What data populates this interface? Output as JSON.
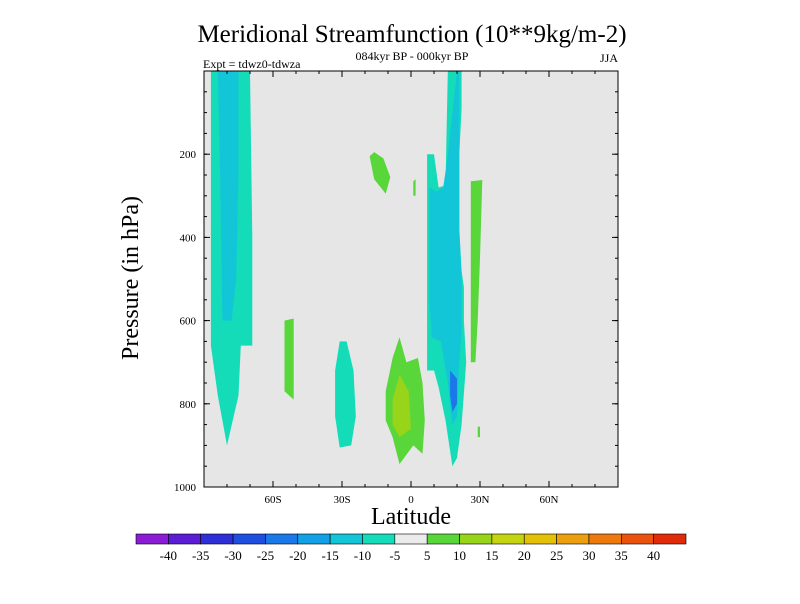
{
  "chart_data": {
    "type": "heatmap",
    "title": "Meridional Streamfunction (10**9kg/m-2)",
    "subtitle": "084kyr BP - 000kyr BP",
    "left_label": "Expt = tdwz0-tdwza",
    "right_label": "JJA",
    "xlabel": "Latitude",
    "ylabel": "Pressure (in hPa)",
    "xlim": [
      -90,
      90
    ],
    "ylim": [
      1000,
      0
    ],
    "x_ticks": [
      {
        "value": -60,
        "label": "60S"
      },
      {
        "value": -30,
        "label": "30S"
      },
      {
        "value": 0,
        "label": "0"
      },
      {
        "value": 30,
        "label": "30N"
      },
      {
        "value": 60,
        "label": "60N"
      }
    ],
    "y_ticks": [
      {
        "value": 200,
        "label": "200"
      },
      {
        "value": 400,
        "label": "400"
      },
      {
        "value": 600,
        "label": "600"
      },
      {
        "value": 800,
        "label": "800"
      },
      {
        "value": 1000,
        "label": "1000"
      }
    ],
    "background_color": "#e6e6e6",
    "colorbar": {
      "levels": [
        "-40",
        "-35",
        "-30",
        "-25",
        "-20",
        "-15",
        "-10",
        "-5",
        "5",
        "10",
        "15",
        "20",
        "25",
        "30",
        "35",
        "40"
      ],
      "colors": [
        "#8a1cd6",
        "#5b1cd6",
        "#2f2fd8",
        "#1f4fe0",
        "#1a78e8",
        "#12a0e6",
        "#12c6d8",
        "#14dcb8",
        "#ebebeb",
        "#58d63a",
        "#98d41a",
        "#c4d410",
        "#e4c008",
        "#eca010",
        "#ee7a0e",
        "#ea520e",
        "#e02a0a"
      ]
    },
    "regions": [
      {
        "name": "sh-high-lat-negative",
        "value": -10,
        "color": "#14dcb8",
        "points": [
          [
            -87,
            0
          ],
          [
            -70,
            0
          ],
          [
            -69,
            400
          ],
          [
            -69,
            660
          ],
          [
            -74,
            660
          ],
          [
            -75,
            780
          ],
          [
            -80,
            900
          ],
          [
            -84,
            780
          ],
          [
            -87,
            660
          ]
        ]
      },
      {
        "name": "sh-high-lat-core",
        "value": -15,
        "color": "#12c6d8",
        "points": [
          [
            -84,
            0
          ],
          [
            -75,
            0
          ],
          [
            -75,
            250
          ],
          [
            -76,
            500
          ],
          [
            -78,
            600
          ],
          [
            -82,
            600
          ],
          [
            -83,
            250
          ]
        ]
      },
      {
        "name": "sh-high-lat-narrow",
        "value": -15,
        "color": "#12c6d8",
        "points": [
          [
            -81,
            0
          ],
          [
            -78,
            0
          ],
          [
            -78,
            120
          ],
          [
            -79,
            160
          ],
          [
            -81,
            120
          ]
        ]
      },
      {
        "name": "south-mid-lat-positive",
        "value": 5,
        "color": "#58d63a",
        "points": [
          [
            -55,
            600
          ],
          [
            -51,
            595
          ],
          [
            -51,
            790
          ],
          [
            -55,
            770
          ]
        ]
      },
      {
        "name": "south-subtropic-negative",
        "value": -10,
        "color": "#14dcb8",
        "points": [
          [
            -33,
            720
          ],
          [
            -31,
            650
          ],
          [
            -28,
            650
          ],
          [
            -25,
            720
          ],
          [
            -24,
            830
          ],
          [
            -26,
            900
          ],
          [
            -31,
            905
          ],
          [
            -33,
            830
          ]
        ]
      },
      {
        "name": "southern-tropic-upper-positive",
        "value": 5,
        "color": "#58d63a",
        "points": [
          [
            -18,
            205
          ],
          [
            -16,
            195
          ],
          [
            -12,
            210
          ],
          [
            -9,
            255
          ],
          [
            -11,
            295
          ],
          [
            -16,
            260
          ]
        ]
      },
      {
        "name": "equator-upper-positive",
        "value": 5,
        "color": "#58d63a",
        "points": [
          [
            1,
            265
          ],
          [
            2,
            260
          ],
          [
            2,
            300
          ],
          [
            1,
            300
          ]
        ]
      },
      {
        "name": "southern-tropic-lower-positive",
        "value": 5,
        "color": "#58d63a",
        "points": [
          [
            -11,
            770
          ],
          [
            -8,
            690
          ],
          [
            -5,
            640
          ],
          [
            -2,
            700
          ],
          [
            3,
            690
          ],
          [
            5,
            750
          ],
          [
            6,
            840
          ],
          [
            5,
            920
          ],
          [
            1,
            900
          ],
          [
            -5,
            945
          ],
          [
            -8,
            880
          ],
          [
            -11,
            840
          ]
        ]
      },
      {
        "name": "southern-tropic-lower-core",
        "value": 10,
        "color": "#98d41a",
        "points": [
          [
            -8,
            790
          ],
          [
            -5,
            730
          ],
          [
            -1,
            770
          ],
          [
            0,
            860
          ],
          [
            -5,
            880
          ],
          [
            -8,
            850
          ]
        ]
      },
      {
        "name": "northern-tropic-negative",
        "value": -10,
        "color": "#14dcb8",
        "points": [
          [
            7,
            200
          ],
          [
            10,
            200
          ],
          [
            12,
            280
          ],
          [
            15,
            275
          ],
          [
            16,
            0
          ],
          [
            22,
            0
          ],
          [
            22,
            90
          ],
          [
            21,
            200
          ],
          [
            21,
            380
          ],
          [
            22,
            480
          ],
          [
            23,
            520
          ],
          [
            23,
            600
          ],
          [
            24,
            700
          ],
          [
            22,
            850
          ],
          [
            20,
            930
          ],
          [
            18,
            950
          ],
          [
            15,
            840
          ],
          [
            12,
            760
          ],
          [
            10,
            720
          ],
          [
            7,
            720
          ]
        ]
      },
      {
        "name": "northern-tropic-core",
        "value": -15,
        "color": "#12c6d8",
        "points": [
          [
            8,
            280
          ],
          [
            11,
            290
          ],
          [
            14,
            280
          ],
          [
            16,
            205
          ],
          [
            20,
            0
          ],
          [
            21,
            0
          ],
          [
            21,
            380
          ],
          [
            22,
            500
          ],
          [
            22,
            620
          ],
          [
            21,
            700
          ],
          [
            20,
            830
          ],
          [
            18,
            850
          ],
          [
            16,
            750
          ],
          [
            13,
            650
          ],
          [
            9,
            640
          ],
          [
            8,
            550
          ]
        ]
      },
      {
        "name": "northern-tropic-deep-core",
        "value": -20,
        "color": "#1a78e8",
        "points": [
          [
            17,
            720
          ],
          [
            20,
            740
          ],
          [
            20,
            800
          ],
          [
            18,
            820
          ],
          [
            17,
            780
          ]
        ]
      },
      {
        "name": "north-subtropic-positive",
        "value": 5,
        "color": "#58d63a",
        "points": [
          [
            26,
            265
          ],
          [
            31,
            262
          ],
          [
            30,
            450
          ],
          [
            29,
            600
          ],
          [
            28,
            700
          ],
          [
            26,
            700
          ],
          [
            26,
            450
          ]
        ]
      },
      {
        "name": "north-subtropic-small-positive",
        "value": 5,
        "color": "#58d63a",
        "points": [
          [
            29,
            855
          ],
          [
            30,
            855
          ],
          [
            30,
            880
          ],
          [
            29,
            880
          ]
        ]
      }
    ]
  }
}
